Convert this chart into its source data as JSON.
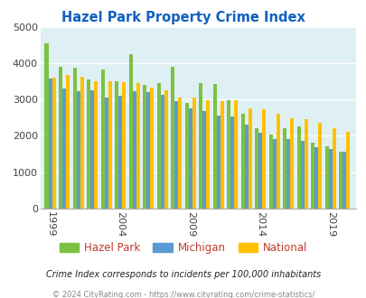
{
  "title": "Hazel Park Property Crime Index",
  "title_color": "#1060c0",
  "plot_bg_color": "#dff0f5",
  "years": [
    1999,
    2000,
    2001,
    2002,
    2003,
    2004,
    2005,
    2006,
    2007,
    2008,
    2009,
    2010,
    2011,
    2012,
    2013,
    2014,
    2015,
    2016,
    2017,
    2018,
    2019,
    2020
  ],
  "hazel_park": [
    4550,
    3900,
    3870,
    3540,
    3820,
    3500,
    4250,
    3400,
    3450,
    3910,
    2900,
    3450,
    3440,
    2970,
    2600,
    2200,
    2030,
    2220,
    2260,
    1820,
    1720,
    1570
  ],
  "michigan": [
    3580,
    3310,
    3240,
    3250,
    3060,
    3100,
    3240,
    3200,
    3140,
    2950,
    2760,
    2680,
    2570,
    2540,
    2320,
    2080,
    1920,
    1920,
    1870,
    1700,
    1630,
    1570
  ],
  "national": [
    3600,
    3680,
    3620,
    3510,
    3500,
    3470,
    3460,
    3340,
    3250,
    3060,
    3060,
    2980,
    2960,
    2970,
    2760,
    2740,
    2600,
    2490,
    2460,
    2360,
    2200,
    2110
  ],
  "hazel_park_color": "#7dc142",
  "michigan_color": "#5b9bd5",
  "national_color": "#ffc000",
  "ylim": [
    0,
    5000
  ],
  "yticks": [
    0,
    1000,
    2000,
    3000,
    4000,
    5000
  ],
  "xtick_labels": [
    "1999",
    "2004",
    "2009",
    "2014",
    "2019"
  ],
  "xtick_positions": [
    1999,
    2004,
    2009,
    2014,
    2019
  ],
  "footer_text": "Crime Index corresponds to incidents per 100,000 inhabitants",
  "copyright_text": "© 2024 CityRating.com - https://www.cityrating.com/crime-statistics/",
  "legend_labels": [
    "Hazel Park",
    "Michigan",
    "National"
  ],
  "legend_text_color": "#c0392b"
}
